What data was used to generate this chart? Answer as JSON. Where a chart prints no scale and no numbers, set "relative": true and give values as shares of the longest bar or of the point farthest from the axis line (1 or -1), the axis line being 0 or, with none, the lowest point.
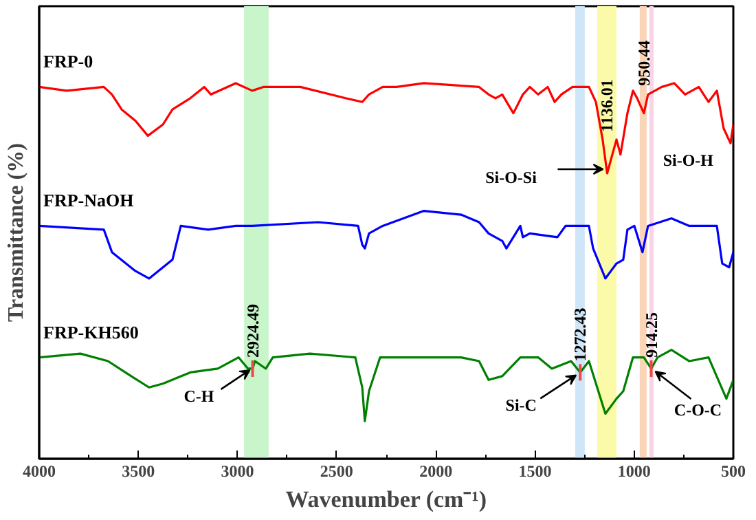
{
  "chart_data": {
    "type": "line",
    "relative": true,
    "xlabel": "Wavenumber (cm⁻¹)",
    "ylabel": "Transmittance (%)",
    "xlim": [
      4000,
      500
    ],
    "xticks": [
      4000,
      3500,
      3000,
      2500,
      2000,
      1500,
      1000,
      500
    ],
    "tick_labels": "x",
    "grid": false,
    "marker": "none",
    "line_style": "solid",
    "series": [
      {
        "name": "FRP-0",
        "color": "#ff0000",
        "x": [
          4000,
          3861,
          3674,
          3633,
          3584,
          3515,
          3452,
          3376,
          3328,
          3238,
          3168,
          3134,
          3009,
          2926,
          2870,
          2683,
          2455,
          2371,
          2337,
          2268,
          2198,
          2060,
          1782,
          1734,
          1699,
          1665,
          1609,
          1561,
          1526,
          1484,
          1436,
          1401,
          1367,
          1311,
          1228,
          1193,
          1159,
          1136,
          1110,
          1089,
          1069,
          1034,
          1006,
          985,
          951,
          930,
          861,
          798,
          743,
          674,
          625,
          583,
          549,
          514,
          500
        ],
        "values": [
          0.99,
          0.98,
          0.99,
          0.97,
          0.93,
          0.9,
          0.86,
          0.89,
          0.93,
          0.96,
          0.99,
          0.97,
          1.0,
          0.98,
          0.99,
          0.99,
          0.96,
          0.95,
          0.97,
          0.99,
          0.99,
          1.0,
          0.99,
          0.97,
          0.96,
          0.97,
          0.92,
          0.97,
          0.99,
          0.97,
          0.99,
          0.95,
          0.97,
          0.99,
          0.99,
          0.95,
          0.85,
          0.76,
          0.81,
          0.85,
          0.81,
          0.92,
          0.98,
          0.96,
          0.92,
          0.97,
          0.99,
          1.0,
          0.97,
          0.99,
          0.95,
          0.98,
          0.88,
          0.84,
          0.89
        ]
      },
      {
        "name": "FRP-NaOH",
        "color": "#0000ff",
        "x": [
          4000,
          3674,
          3633,
          3515,
          3446,
          3328,
          3286,
          3148,
          3009,
          2926,
          2593,
          2392,
          2371,
          2358,
          2337,
          2268,
          2060,
          1873,
          1782,
          1734,
          1665,
          1644,
          1574,
          1561,
          1526,
          1387,
          1346,
          1228,
          1207,
          1145,
          1089,
          1055,
          1034,
          999,
          958,
          930,
          812,
          722,
          583,
          556,
          521,
          500
        ],
        "values": [
          0.62,
          0.61,
          0.55,
          0.5,
          0.48,
          0.53,
          0.62,
          0.61,
          0.62,
          0.62,
          0.63,
          0.62,
          0.57,
          0.56,
          0.6,
          0.62,
          0.66,
          0.65,
          0.63,
          0.6,
          0.58,
          0.56,
          0.62,
          0.59,
          0.6,
          0.59,
          0.62,
          0.62,
          0.56,
          0.48,
          0.52,
          0.53,
          0.61,
          0.62,
          0.55,
          0.62,
          0.64,
          0.62,
          0.62,
          0.52,
          0.51,
          0.55
        ]
      },
      {
        "name": "FRP-KH560",
        "color": "#008000",
        "x": [
          4000,
          3792,
          3653,
          3536,
          3446,
          3376,
          3238,
          3099,
          2995,
          2947,
          2924,
          2912,
          2857,
          2822,
          2635,
          2406,
          2371,
          2358,
          2337,
          2281,
          1873,
          1782,
          1734,
          1665,
          1574,
          1484,
          1415,
          1318,
          1272,
          1228,
          1145,
          1089,
          1055,
          1006,
          951,
          914,
          882,
          812,
          722,
          625,
          535,
          500
        ],
        "values": [
          0.27,
          0.28,
          0.26,
          0.22,
          0.19,
          0.2,
          0.23,
          0.24,
          0.27,
          0.24,
          0.24,
          0.26,
          0.24,
          0.27,
          0.28,
          0.27,
          0.19,
          0.1,
          0.18,
          0.27,
          0.27,
          0.26,
          0.21,
          0.22,
          0.27,
          0.27,
          0.24,
          0.26,
          0.23,
          0.26,
          0.12,
          0.16,
          0.18,
          0.27,
          0.27,
          0.24,
          0.27,
          0.29,
          0.26,
          0.27,
          0.16,
          0.21
        ]
      }
    ],
    "bands": [
      {
        "axis": "x",
        "from": 2967,
        "to": 2843,
        "color": "#c9f5cb"
      },
      {
        "axis": "x",
        "from": 1297,
        "to": 1249,
        "color": "#cfe6f8"
      },
      {
        "axis": "x",
        "from": 1186,
        "to": 1089,
        "color": "#fafaa8"
      },
      {
        "axis": "x",
        "from": 972,
        "to": 937,
        "color": "#fbd5b8"
      },
      {
        "axis": "x",
        "from": 923,
        "to": 902,
        "color": "#fbd3e6"
      }
    ],
    "annotations": [
      {
        "text": "1136.01",
        "x": 1136,
        "y": 0.76
      },
      {
        "text": "950.44",
        "x": 951,
        "y": 0.92
      },
      {
        "text": "Si-O-Si",
        "x": 1136,
        "y": 0.76
      },
      "Si-O-H",
      {
        "text": "2924.49",
        "x": 2924,
        "y": 0.24
      },
      {
        "text": "C-H",
        "x": 2924,
        "y": 0.24
      },
      {
        "text": "1272.43",
        "x": 1272,
        "y": 0.23
      },
      {
        "text": "Si-C",
        "x": 1272,
        "y": 0.23
      },
      {
        "text": "914.25",
        "x": 914,
        "y": 0.24
      },
      {
        "text": "C-O-C",
        "x": 914,
        "y": 0.24
      }
    ]
  }
}
